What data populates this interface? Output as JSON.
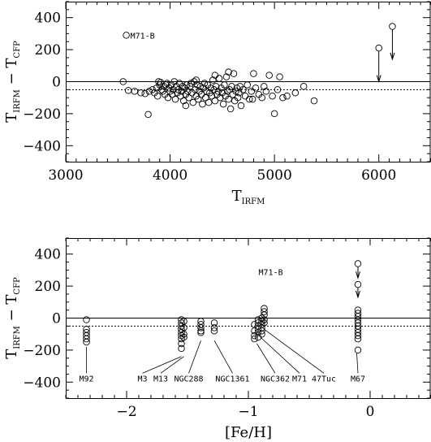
{
  "chart_data": [
    {
      "type": "scatter",
      "xlabel": "T",
      "xlabel_sub": "IRFM",
      "ylabel_parts": [
        "T",
        "IRFM",
        " − T",
        "CFP"
      ],
      "xlim": [
        3000,
        6500
      ],
      "ylim": [
        -500,
        500
      ],
      "xticks": [
        3000,
        4000,
        5000,
        6000
      ],
      "yticks": [
        -400,
        -200,
        0,
        200,
        400
      ],
      "reference_lines": [
        {
          "y": 0,
          "style": "solid"
        },
        {
          "y": -50,
          "style": "dotted"
        }
      ],
      "annotations": [
        {
          "text": "M71-B",
          "x": 3580,
          "y": 290
        }
      ],
      "upper_limits": [
        {
          "x": 6000,
          "y": 210,
          "arrow_to": 0
        },
        {
          "x": 6130,
          "y": 345,
          "arrow_to": 140
        }
      ],
      "points": [
        [
          3580,
          290
        ],
        [
          3550,
          0
        ],
        [
          3600,
          -55
        ],
        [
          3660,
          -60
        ],
        [
          3720,
          -70
        ],
        [
          3760,
          -75
        ],
        [
          3790,
          -205
        ],
        [
          3800,
          -60
        ],
        [
          3830,
          -50
        ],
        [
          3850,
          -70
        ],
        [
          3870,
          -40
        ],
        [
          3880,
          -90
        ],
        [
          3900,
          -20
        ],
        [
          3910,
          -5
        ],
        [
          3920,
          -50
        ],
        [
          3930,
          -60
        ],
        [
          3940,
          -30
        ],
        [
          3950,
          -80
        ],
        [
          3960,
          -20
        ],
        [
          3970,
          -10
        ],
        [
          3980,
          -100
        ],
        [
          3990,
          -40
        ],
        [
          4000,
          -60
        ],
        [
          4010,
          -20
        ],
        [
          4020,
          -80
        ],
        [
          4030,
          -50
        ],
        [
          4040,
          0
        ],
        [
          4050,
          -110
        ],
        [
          4060,
          -30
        ],
        [
          4070,
          -70
        ],
        [
          4080,
          -50
        ],
        [
          4090,
          -10
        ],
        [
          4100,
          -90
        ],
        [
          4110,
          -60
        ],
        [
          4120,
          -30
        ],
        [
          4130,
          -120
        ],
        [
          4140,
          -40
        ],
        [
          4150,
          -80
        ],
        [
          4160,
          -20
        ],
        [
          4170,
          -60
        ],
        [
          4180,
          -100
        ],
        [
          4190,
          -30
        ],
        [
          4200,
          -10
        ],
        [
          4210,
          -70
        ],
        [
          4220,
          -130
        ],
        [
          4230,
          0
        ],
        [
          4240,
          -50
        ],
        [
          4250,
          -90
        ],
        [
          4260,
          -20
        ],
        [
          4270,
          -110
        ],
        [
          4280,
          -60
        ],
        [
          4290,
          -30
        ],
        [
          4300,
          -80
        ],
        [
          4310,
          -140
        ],
        [
          4320,
          -40
        ],
        [
          4330,
          -10
        ],
        [
          4340,
          -100
        ],
        [
          4350,
          -60
        ],
        [
          4360,
          -20
        ],
        [
          4370,
          -130
        ],
        [
          4380,
          -70
        ],
        [
          4390,
          -40
        ],
        [
          4400,
          -90
        ],
        [
          4410,
          10
        ],
        [
          4420,
          -50
        ],
        [
          4430,
          -120
        ],
        [
          4440,
          -30
        ],
        [
          4450,
          -80
        ],
        [
          4460,
          -60
        ],
        [
          4470,
          20
        ],
        [
          4480,
          -100
        ],
        [
          4490,
          -40
        ],
        [
          4500,
          -70
        ],
        [
          4510,
          -140
        ],
        [
          4520,
          -20
        ],
        [
          4530,
          -90
        ],
        [
          4540,
          30
        ],
        [
          4550,
          -60
        ],
        [
          4560,
          -110
        ],
        [
          4570,
          -50
        ],
        [
          4580,
          -170
        ],
        [
          4590,
          -30
        ],
        [
          4600,
          -80
        ],
        [
          4610,
          50
        ],
        [
          4620,
          -120
        ],
        [
          4630,
          -60
        ],
        [
          4640,
          -40
        ],
        [
          4650,
          -100
        ],
        [
          4660,
          -70
        ],
        [
          4670,
          -30
        ],
        [
          4680,
          -150
        ],
        [
          4700,
          -50
        ],
        [
          4720,
          -90
        ],
        [
          4740,
          -20
        ],
        [
          4760,
          -110
        ],
        [
          4780,
          -60
        ],
        [
          4800,
          50
        ],
        [
          4820,
          -40
        ],
        [
          4850,
          -80
        ],
        [
          4880,
          -100
        ],
        [
          4900,
          -30
        ],
        [
          4920,
          -60
        ],
        [
          4950,
          40
        ],
        [
          4980,
          -90
        ],
        [
          5000,
          -200
        ],
        [
          5030,
          -50
        ],
        [
          5050,
          30
        ],
        [
          5080,
          -100
        ],
        [
          5120,
          -90
        ],
        [
          5200,
          -70
        ],
        [
          5280,
          -30
        ],
        [
          5380,
          -120
        ],
        [
          4790,
          -110
        ],
        [
          4560,
          60
        ],
        [
          4430,
          40
        ],
        [
          4250,
          10
        ],
        [
          4150,
          -150
        ],
        [
          3890,
          0
        ]
      ]
    },
    {
      "type": "scatter",
      "xlabel": "[Fe/H]",
      "ylabel_parts": [
        "T",
        "IRFM",
        " − T",
        "CFP"
      ],
      "xlim": [
        -2.5,
        0.5
      ],
      "ylim": [
        -500,
        500
      ],
      "xticks": [
        -2,
        -1,
        0
      ],
      "yticks": [
        -400,
        -200,
        0,
        200,
        400
      ],
      "reference_lines": [
        {
          "y": 0,
          "style": "solid"
        },
        {
          "y": -50,
          "style": "dotted"
        }
      ],
      "annotations": [
        {
          "text": "M71-B",
          "x": -0.95,
          "y": 290
        }
      ],
      "upper_limits": [
        {
          "x": -0.1,
          "y": 340,
          "arrow_to": 250
        },
        {
          "x": -0.1,
          "y": 210,
          "arrow_to": 130
        }
      ],
      "cluster_labels": [
        {
          "text": "M92",
          "label_x": -2.33,
          "label_y": -385,
          "point_x": -2.33,
          "point_y": -180
        },
        {
          "text": "M3",
          "label_x": -1.87,
          "label_y": -385,
          "point_x": -1.55,
          "point_y": -240
        },
        {
          "text": "M13",
          "label_x": -1.72,
          "label_y": -385,
          "point_x": -1.53,
          "point_y": -240
        },
        {
          "text": "NGC288",
          "label_x": -1.49,
          "label_y": -385,
          "point_x": -1.39,
          "point_y": -140
        },
        {
          "text": "NGC1361",
          "label_x": -1.13,
          "label_y": -385,
          "point_x": -1.28,
          "point_y": -140
        },
        {
          "text": "NGC362",
          "label_x": -0.78,
          "label_y": -385,
          "point_x": -0.93,
          "point_y": -160
        },
        {
          "text": "M71",
          "label_x": -0.58,
          "label_y": -385,
          "point_x": -0.9,
          "point_y": -120
        },
        {
          "text": "47Tuc",
          "label_x": -0.38,
          "label_y": -385,
          "point_x": -0.87,
          "point_y": -70
        },
        {
          "text": "M67",
          "label_x": -0.1,
          "label_y": -385,
          "point_x": -0.11,
          "point_y": -220
        }
      ],
      "points": [
        [
          -2.33,
          -10
        ],
        [
          -2.33,
          -70
        ],
        [
          -2.33,
          -90
        ],
        [
          -2.33,
          -110
        ],
        [
          -2.33,
          -130
        ],
        [
          -2.33,
          -150
        ],
        [
          -1.55,
          -10
        ],
        [
          -1.55,
          -30
        ],
        [
          -1.55,
          -50
        ],
        [
          -1.55,
          -70
        ],
        [
          -1.55,
          -90
        ],
        [
          -1.55,
          -110
        ],
        [
          -1.55,
          -130
        ],
        [
          -1.55,
          -160
        ],
        [
          -1.55,
          -190
        ],
        [
          -1.53,
          -20
        ],
        [
          -1.53,
          -60
        ],
        [
          -1.53,
          -100
        ],
        [
          -1.53,
          -120
        ],
        [
          -1.39,
          -20
        ],
        [
          -1.39,
          -40
        ],
        [
          -1.39,
          -60
        ],
        [
          -1.39,
          -80
        ],
        [
          -1.39,
          -90
        ],
        [
          -1.28,
          -30
        ],
        [
          -1.28,
          -60
        ],
        [
          -1.28,
          -80
        ],
        [
          -0.95,
          -40
        ],
        [
          -0.95,
          -80
        ],
        [
          -0.95,
          -110
        ],
        [
          -0.95,
          -130
        ],
        [
          -0.92,
          -10
        ],
        [
          -0.92,
          -30
        ],
        [
          -0.92,
          -50
        ],
        [
          -0.92,
          -70
        ],
        [
          -0.92,
          -90
        ],
        [
          -0.92,
          -120
        ],
        [
          -0.89,
          0
        ],
        [
          -0.89,
          -20
        ],
        [
          -0.89,
          -40
        ],
        [
          -0.89,
          -60
        ],
        [
          -0.89,
          -80
        ],
        [
          -0.89,
          -100
        ],
        [
          -0.87,
          60
        ],
        [
          -0.87,
          40
        ],
        [
          -0.87,
          20
        ],
        [
          -0.87,
          -10
        ],
        [
          -0.87,
          -30
        ],
        [
          -0.1,
          50
        ],
        [
          -0.1,
          30
        ],
        [
          -0.1,
          10
        ],
        [
          -0.1,
          -10
        ],
        [
          -0.1,
          -30
        ],
        [
          -0.1,
          -50
        ],
        [
          -0.1,
          -70
        ],
        [
          -0.1,
          -90
        ],
        [
          -0.1,
          -110
        ],
        [
          -0.1,
          -130
        ],
        [
          -0.1,
          -200
        ]
      ]
    }
  ]
}
